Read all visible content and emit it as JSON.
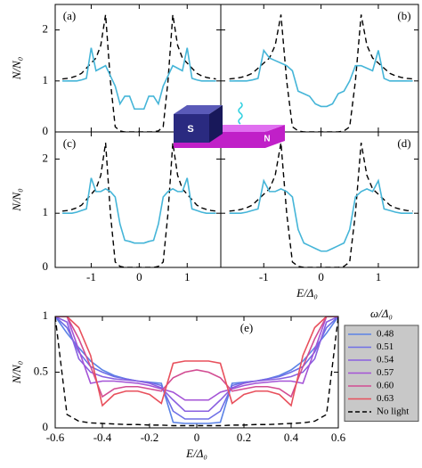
{
  "chart_data": [
    {
      "type": "line",
      "panel_label": "(a)",
      "y_label": "N/N₀",
      "x": [
        -1.6,
        -1.5,
        -1.4,
        -1.3,
        -1.2,
        -1.1,
        -1.0,
        -0.9,
        -0.8,
        -0.7,
        -0.6,
        -0.5,
        -0.4,
        -0.3,
        -0.2,
        -0.1,
        0,
        0.1,
        0.2,
        0.3,
        0.4,
        0.5,
        0.6,
        0.7,
        0.8,
        0.9,
        1.0,
        1.1,
        1.2,
        1.3,
        1.4,
        1.5,
        1.6
      ],
      "xlim": [
        -1.75,
        1.7
      ],
      "xticks": [
        -1,
        0,
        1
      ],
      "ylim": [
        0,
        2.5
      ],
      "yticks": [
        0,
        1,
        2
      ],
      "series": [
        {
          "color": "#000000",
          "line_style": "dashed",
          "values": [
            1.04,
            1.05,
            1.07,
            1.1,
            1.15,
            1.25,
            1.35,
            1.45,
            1.7,
            2.3,
            1.0,
            0.1,
            0.02,
            0,
            0,
            0,
            0,
            0,
            0,
            0,
            0.02,
            0.1,
            1.0,
            2.3,
            1.7,
            1.45,
            1.35,
            1.25,
            1.15,
            1.1,
            1.07,
            1.05,
            1.04
          ]
        },
        {
          "color": "#45b5d8",
          "line_style": "solid",
          "values": [
            1.0,
            1.0,
            1.0,
            1.0,
            1.02,
            1.05,
            1.65,
            1.2,
            1.25,
            1.3,
            1.1,
            0.9,
            0.55,
            0.7,
            0.7,
            0.45,
            0.45,
            0.45,
            0.7,
            0.7,
            0.55,
            0.9,
            1.1,
            1.3,
            1.25,
            1.2,
            1.65,
            1.05,
            1.02,
            1.0,
            1.0,
            1.0,
            1.0
          ]
        }
      ]
    },
    {
      "type": "line",
      "panel_label": "(b)",
      "x": [
        -1.6,
        -1.5,
        -1.4,
        -1.3,
        -1.2,
        -1.1,
        -1.0,
        -0.9,
        -0.8,
        -0.7,
        -0.6,
        -0.5,
        -0.4,
        -0.3,
        -0.2,
        -0.1,
        0,
        0.1,
        0.2,
        0.3,
        0.4,
        0.5,
        0.6,
        0.7,
        0.8,
        0.9,
        1.0,
        1.1,
        1.2,
        1.3,
        1.4,
        1.5,
        1.6
      ],
      "xlim": [
        -1.75,
        1.7
      ],
      "xticks": [
        -1,
        0,
        1
      ],
      "ylim": [
        0,
        2.5
      ],
      "yticks": [
        0,
        1,
        2
      ],
      "series": [
        {
          "color": "#000000",
          "line_style": "dashed",
          "values": [
            1.04,
            1.05,
            1.07,
            1.1,
            1.15,
            1.25,
            1.35,
            1.45,
            1.7,
            2.3,
            1.0,
            0.1,
            0.02,
            0,
            0,
            0,
            0,
            0,
            0,
            0,
            0.02,
            0.1,
            1.0,
            2.3,
            1.7,
            1.45,
            1.35,
            1.25,
            1.15,
            1.1,
            1.07,
            1.05,
            1.04
          ]
        },
        {
          "color": "#45b5d8",
          "line_style": "solid",
          "values": [
            1.0,
            1.0,
            1.0,
            1.0,
            1.02,
            1.05,
            1.6,
            1.45,
            1.4,
            1.35,
            1.3,
            1.2,
            0.8,
            0.75,
            0.7,
            0.55,
            0.5,
            0.5,
            0.55,
            0.75,
            0.8,
            1.0,
            1.3,
            1.3,
            1.25,
            1.2,
            1.6,
            1.05,
            1.0,
            1.0,
            1.0,
            1.0,
            1.0
          ]
        }
      ]
    },
    {
      "type": "line",
      "panel_label": "(c)",
      "y_label": "N/N₀",
      "x": [
        -1.6,
        -1.5,
        -1.4,
        -1.3,
        -1.2,
        -1.1,
        -1.0,
        -0.9,
        -0.8,
        -0.7,
        -0.6,
        -0.5,
        -0.4,
        -0.3,
        -0.2,
        -0.1,
        0,
        0.1,
        0.2,
        0.3,
        0.4,
        0.5,
        0.6,
        0.7,
        0.8,
        0.9,
        1.0,
        1.1,
        1.2,
        1.3,
        1.4,
        1.5,
        1.6
      ],
      "xlim": [
        -1.75,
        1.7
      ],
      "xticks": [
        -1,
        0,
        1
      ],
      "ylim": [
        0,
        2.5
      ],
      "yticks": [
        0,
        1,
        2
      ],
      "series": [
        {
          "color": "#000000",
          "line_style": "dashed",
          "values": [
            1.04,
            1.05,
            1.07,
            1.1,
            1.15,
            1.25,
            1.35,
            1.45,
            1.7,
            2.3,
            1.0,
            0.1,
            0.02,
            0,
            0,
            0,
            0,
            0,
            0,
            0,
            0.02,
            0.1,
            1.0,
            2.3,
            1.7,
            1.45,
            1.35,
            1.25,
            1.15,
            1.1,
            1.07,
            1.05,
            1.04
          ]
        },
        {
          "color": "#45b5d8",
          "line_style": "solid",
          "values": [
            1.0,
            1.0,
            1.0,
            1.02,
            1.05,
            1.08,
            1.65,
            1.4,
            1.4,
            1.45,
            1.4,
            1.3,
            0.8,
            0.5,
            0.48,
            0.45,
            0.45,
            0.45,
            0.48,
            0.5,
            0.8,
            1.3,
            1.4,
            1.45,
            1.4,
            1.4,
            1.65,
            1.08,
            1.05,
            1.02,
            1.0,
            1.0,
            1.0
          ]
        }
      ]
    },
    {
      "type": "line",
      "panel_label": "(d)",
      "x_label": "E/Δ₀",
      "x": [
        -1.6,
        -1.5,
        -1.4,
        -1.3,
        -1.2,
        -1.1,
        -1.0,
        -0.9,
        -0.8,
        -0.7,
        -0.6,
        -0.5,
        -0.4,
        -0.3,
        -0.2,
        -0.1,
        0,
        0.1,
        0.2,
        0.3,
        0.4,
        0.5,
        0.6,
        0.7,
        0.8,
        0.9,
        1.0,
        1.1,
        1.2,
        1.3,
        1.4,
        1.5,
        1.6
      ],
      "xlim": [
        -1.75,
        1.7
      ],
      "xticks": [
        -1,
        0,
        1
      ],
      "ylim": [
        0,
        2.5
      ],
      "yticks": [
        0,
        1,
        2
      ],
      "series": [
        {
          "color": "#000000",
          "line_style": "dashed",
          "values": [
            1.04,
            1.05,
            1.07,
            1.1,
            1.15,
            1.25,
            1.35,
            1.45,
            1.7,
            2.3,
            1.0,
            0.1,
            0.02,
            0,
            0,
            0,
            0,
            0,
            0,
            0,
            0.02,
            0.1,
            1.0,
            2.3,
            1.7,
            1.45,
            1.35,
            1.25,
            1.15,
            1.1,
            1.07,
            1.05,
            1.04
          ]
        },
        {
          "color": "#45b5d8",
          "line_style": "solid",
          "values": [
            1.0,
            1.0,
            1.0,
            1.02,
            1.05,
            1.08,
            1.6,
            1.4,
            1.4,
            1.45,
            1.4,
            1.3,
            0.7,
            0.45,
            0.4,
            0.35,
            0.3,
            0.3,
            0.35,
            0.4,
            0.45,
            0.7,
            1.3,
            1.4,
            1.45,
            1.4,
            1.6,
            1.08,
            1.05,
            1.02,
            1.0,
            1.0,
            1.0
          ]
        }
      ]
    },
    {
      "type": "line",
      "panel_label": "(e)",
      "y_label": "N/N₀",
      "x_label": "E/Δ₀",
      "legend_title": "ω/Δ₀",
      "legend": "outside right",
      "x": [
        -0.6,
        -0.55,
        -0.5,
        -0.45,
        -0.4,
        -0.35,
        -0.3,
        -0.25,
        -0.2,
        -0.15,
        -0.1,
        -0.05,
        0,
        0.05,
        0.1,
        0.15,
        0.2,
        0.25,
        0.3,
        0.35,
        0.4,
        0.45,
        0.5,
        0.55,
        0.6
      ],
      "xlim": [
        -0.6,
        0.6
      ],
      "xticks": [
        -0.6,
        -0.4,
        -0.2,
        0,
        0.2,
        0.4,
        0.6
      ],
      "ylim": [
        0,
        1
      ],
      "yticks": [
        0,
        0.5,
        1
      ],
      "series": [
        {
          "name": "0.48",
          "color": "#5b82e6",
          "line_style": "solid",
          "values": [
            1.0,
            0.85,
            0.72,
            0.6,
            0.52,
            0.47,
            0.44,
            0.42,
            0.41,
            0.4,
            0.05,
            0.04,
            0.04,
            0.04,
            0.05,
            0.4,
            0.41,
            0.42,
            0.44,
            0.47,
            0.52,
            0.6,
            0.72,
            0.85,
            1.0
          ]
        },
        {
          "name": "0.51",
          "color": "#6e6ee6",
          "line_style": "solid",
          "values": [
            1.0,
            0.9,
            0.68,
            0.55,
            0.5,
            0.46,
            0.44,
            0.42,
            0.41,
            0.38,
            0.15,
            0.08,
            0.08,
            0.08,
            0.15,
            0.38,
            0.41,
            0.42,
            0.44,
            0.46,
            0.5,
            0.55,
            0.68,
            0.9,
            1.0
          ]
        },
        {
          "name": "0.54",
          "color": "#8a60e0",
          "line_style": "solid",
          "values": [
            1.0,
            0.95,
            0.62,
            0.5,
            0.46,
            0.44,
            0.43,
            0.42,
            0.4,
            0.36,
            0.25,
            0.15,
            0.15,
            0.15,
            0.25,
            0.36,
            0.4,
            0.42,
            0.43,
            0.44,
            0.46,
            0.5,
            0.62,
            0.95,
            1.0
          ]
        },
        {
          "name": "0.57",
          "color": "#a453d6",
          "line_style": "solid",
          "values": [
            1.0,
            1.0,
            0.7,
            0.4,
            0.42,
            0.42,
            0.41,
            0.4,
            0.38,
            0.35,
            0.32,
            0.25,
            0.25,
            0.25,
            0.32,
            0.35,
            0.38,
            0.4,
            0.41,
            0.42,
            0.42,
            0.4,
            0.7,
            1.0,
            1.0
          ]
        },
        {
          "name": "0.60",
          "color": "#d24c92",
          "line_style": "solid",
          "values": [
            1.0,
            1.0,
            0.8,
            0.55,
            0.28,
            0.35,
            0.37,
            0.37,
            0.35,
            0.33,
            0.45,
            0.5,
            0.52,
            0.5,
            0.45,
            0.33,
            0.35,
            0.37,
            0.37,
            0.35,
            0.28,
            0.55,
            0.8,
            1.0,
            1.0
          ]
        },
        {
          "name": "0.63",
          "color": "#e8505c",
          "line_style": "solid",
          "values": [
            1.0,
            1.0,
            0.9,
            0.65,
            0.2,
            0.3,
            0.33,
            0.33,
            0.3,
            0.22,
            0.58,
            0.6,
            0.6,
            0.6,
            0.58,
            0.22,
            0.3,
            0.33,
            0.33,
            0.3,
            0.2,
            0.65,
            0.9,
            1.0,
            1.0
          ]
        },
        {
          "name": "No light",
          "color": "#000000",
          "line_style": "dashed",
          "values": [
            1.0,
            0.12,
            0.06,
            0.045,
            0.04,
            0.035,
            0.03,
            0.03,
            0.025,
            0.025,
            0.02,
            0.02,
            0.02,
            0.02,
            0.02,
            0.025,
            0.025,
            0.03,
            0.03,
            0.035,
            0.04,
            0.045,
            0.06,
            0.12,
            1.0
          ]
        }
      ]
    }
  ],
  "inset": {
    "s_label": "S",
    "n_label": "N"
  }
}
